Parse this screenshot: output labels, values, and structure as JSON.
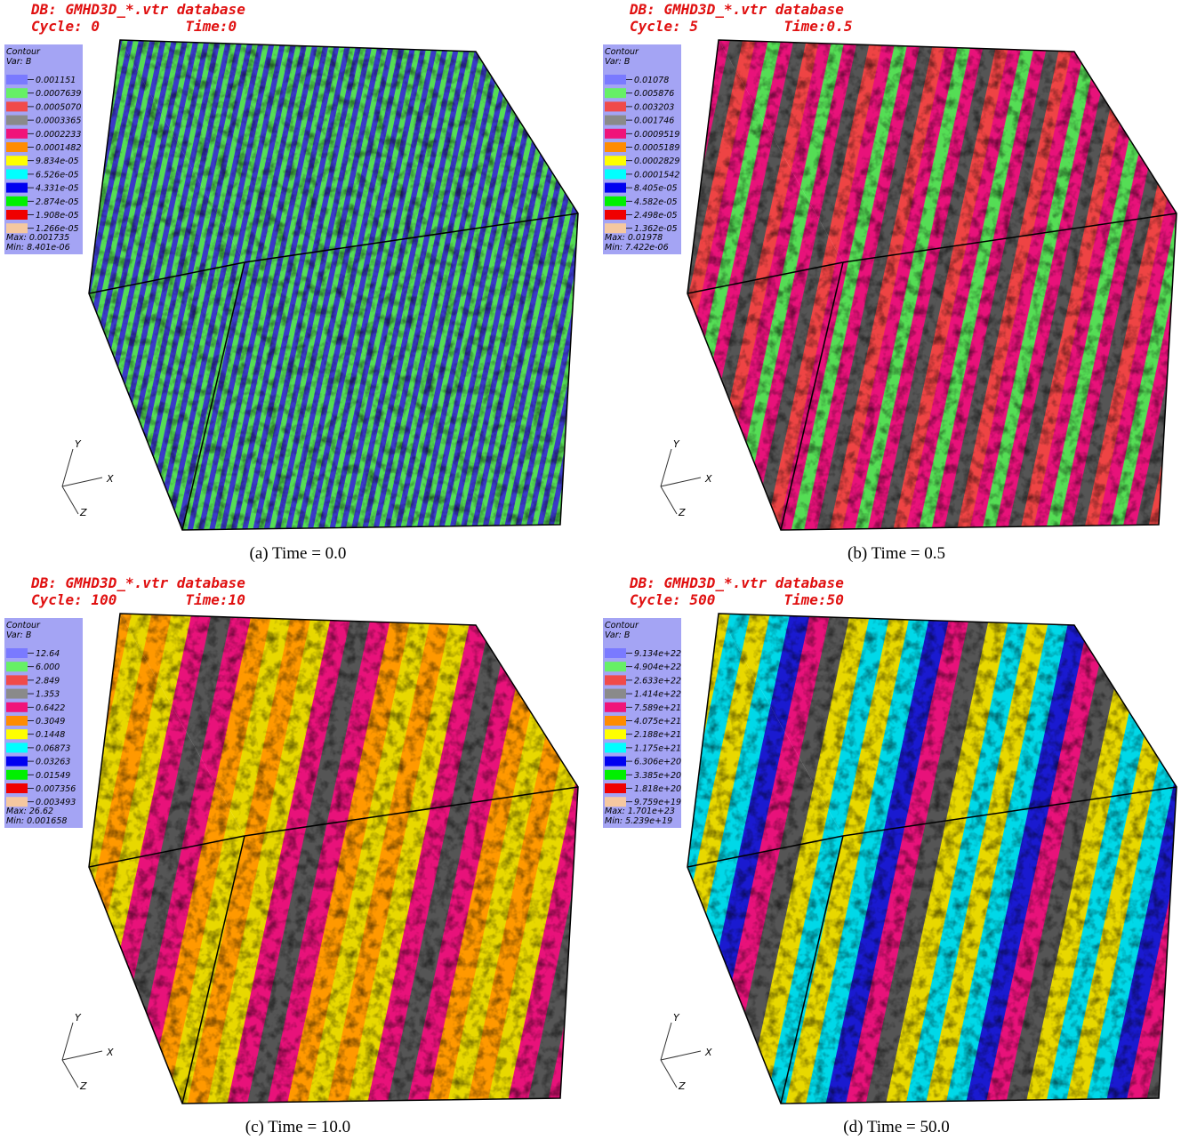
{
  "legend_colors": [
    "#7a7aff",
    "#66f066",
    "#f04a4a",
    "#8a8a8a",
    "#f0137a",
    "#ff8c00",
    "#ffff00",
    "#00ffff",
    "#0000f0",
    "#00f000",
    "#f00000",
    "#f5c8a0"
  ],
  "panels": [
    {
      "header": [
        "DB: GMHD3D_*.vtr database",
        "Cycle: 0          Time:0"
      ],
      "legend": {
        "title": "Contour",
        "var": "Var: B",
        "levels": [
          "0.001151",
          "0.0007639",
          "0.0005070",
          "0.0003365",
          "0.0002233",
          "0.0001482",
          "9.834e-05",
          "6.526e-05",
          "4.331e-05",
          "2.874e-05",
          "1.908e-05",
          "1.266e-05"
        ],
        "max": "Max: 0.001735",
        "min": "Min: 8.401e-06"
      },
      "axes": [
        "Y",
        "X",
        "Z"
      ],
      "caption": "(a) Time = 0.0"
    },
    {
      "header": [
        "DB: GMHD3D_*.vtr database",
        "Cycle: 5          Time:0.5"
      ],
      "legend": {
        "title": "Contour",
        "var": "Var: B",
        "levels": [
          "0.01078",
          "0.005876",
          "0.003203",
          "0.001746",
          "0.0009519",
          "0.0005189",
          "0.0002829",
          "0.0001542",
          "8.405e-05",
          "4.582e-05",
          "2.498e-05",
          "1.362e-05"
        ],
        "max": "Max: 0.01978",
        "min": "Min: 7.422e-06"
      },
      "axes": [
        "Y",
        "X",
        "Z"
      ],
      "caption": "(b) Time = 0.5"
    },
    {
      "header": [
        "DB: GMHD3D_*.vtr database",
        "Cycle: 100        Time:10"
      ],
      "legend": {
        "title": "Contour",
        "var": "Var: B",
        "levels": [
          "12.64",
          "6.000",
          "2.849",
          "1.353",
          "0.6422",
          "0.3049",
          "0.1448",
          "0.06873",
          "0.03263",
          "0.01549",
          "0.007356",
          "0.003493"
        ],
        "max": "Max: 26.62",
        "min": "Min: 0.001658"
      },
      "axes": [
        "Y",
        "X",
        "Z"
      ],
      "caption": "(c) Time = 10.0"
    },
    {
      "header": [
        "DB: GMHD3D_*.vtr database",
        "Cycle: 500        Time:50"
      ],
      "legend": {
        "title": "Contour",
        "var": "Var: B",
        "levels": [
          "9.134e+22",
          "4.904e+22",
          "2.633e+22",
          "1.414e+22",
          "7.589e+21",
          "4.075e+21",
          "2.188e+21",
          "1.175e+21",
          "6.306e+20",
          "3.385e+20",
          "1.818e+20",
          "9.759e+19"
        ],
        "max": "Max: 1.701e+23",
        "min": "Min: 5.239e+19"
      },
      "axes": [
        "Y",
        "X",
        "Z"
      ],
      "caption": "(d) Time = 50.0"
    }
  ]
}
